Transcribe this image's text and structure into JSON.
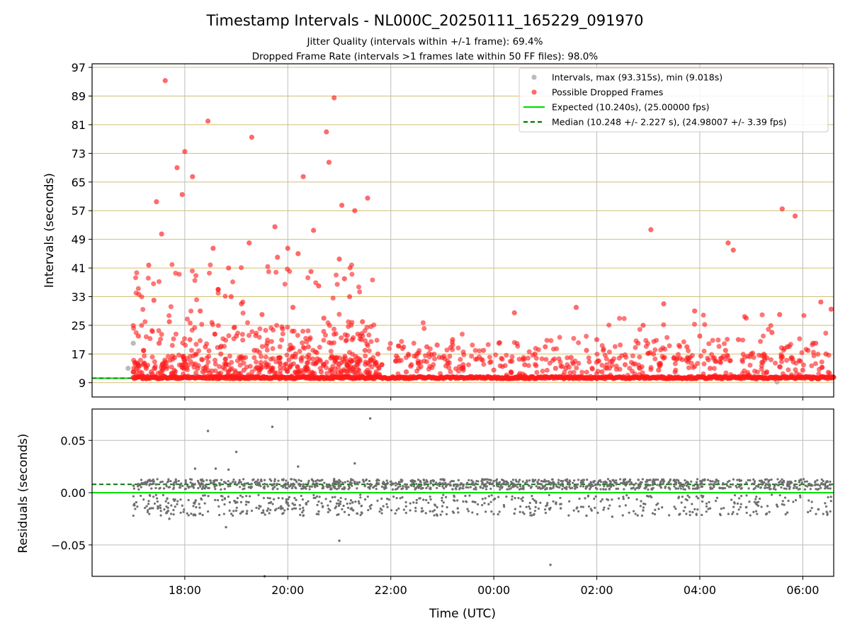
{
  "chart_data": [
    {
      "type": "scatter",
      "title": "Timestamp Intervals - NL000C_20250111_165229_091970",
      "subtitle_lines": [
        "Jitter Quality (intervals within +/-1 frame): 69.4%",
        "Dropped Frame Rate (intervals >1 frames late within 50 FF files): 98.0%"
      ],
      "xlabel": "",
      "ylabel": "Intervals (seconds)",
      "xlim_hours": [
        16.2,
        30.6
      ],
      "ylim": [
        5,
        98
      ],
      "yticks": [
        9,
        17,
        25,
        33,
        41,
        49,
        57,
        65,
        73,
        81,
        89,
        97
      ],
      "x_tick_hours": [
        18,
        20,
        22,
        24,
        26,
        28,
        30
      ],
      "grid": true,
      "legend_position": "top-right",
      "colors": {
        "intervals": "#9e9e9e",
        "dropped": "#ff1a1a",
        "expected": "#00e000",
        "median": "#007a00",
        "ygrid": "#d4be72",
        "xgrid": "#bdbdbd"
      },
      "series": [
        {
          "name": "Intervals, max (93.315s), min (9.018s)",
          "kind": "scatter",
          "x_hours": [
            16.9,
            17.0,
            17.1,
            17.2,
            17.3,
            17.5,
            17.8,
            18.2,
            18.6,
            19.5,
            20.3,
            21.3,
            21.6,
            29.1,
            29.5,
            30.3
          ],
          "y": [
            13.0,
            20.0,
            14.0,
            10.5,
            11.0,
            10.3,
            10.8,
            10.9,
            10.6,
            10.5,
            10.7,
            10.5,
            10.8,
            9.9,
            9.2,
            10.0
          ]
        },
        {
          "name": "Possible Dropped Frames",
          "kind": "scatter",
          "x_hours": [
            17.62,
            18.0,
            18.45,
            19.3,
            20.3,
            20.8,
            20.9,
            20.5,
            21.3,
            20.75,
            21.05,
            18.15,
            17.85,
            17.45,
            21.55,
            17.55,
            17.95,
            18.85,
            29.6,
            29.85,
            28.55,
            28.65,
            27.05,
            27.3,
            17.3,
            18.55,
            19.8,
            20.0,
            21.0,
            21.1,
            19.25,
            19.75,
            20.2,
            20.45,
            20.6,
            17.1,
            17.4,
            17.7,
            18.3,
            18.65,
            18.9,
            19.1,
            19.5,
            19.9,
            20.1,
            20.7,
            21.2,
            21.45,
            17.2,
            17.5,
            17.8,
            18.1,
            18.4,
            18.7,
            19.0,
            19.35,
            19.6,
            20.15,
            20.4,
            20.95,
            21.25,
            21.5,
            21.75,
            22.1,
            22.4,
            22.7,
            23.0,
            23.4,
            23.8,
            24.1,
            24.35,
            24.6,
            24.8,
            25.0,
            25.2,
            25.5,
            25.8,
            26.0,
            26.3,
            26.55,
            26.8,
            27.1,
            27.5,
            27.75,
            28.0,
            28.3,
            28.5,
            28.75,
            29.0,
            29.25,
            29.4,
            29.7,
            29.95,
            30.1,
            30.25,
            30.45,
            30.55,
            24.4,
            23.2,
            22.9,
            25.6,
            26.9,
            27.9,
            28.9,
            29.55,
            30.35,
            17.65,
            19.15,
            20.55,
            21.4,
            17.35,
            18.25,
            18.8,
            19.45,
            20.05,
            20.65,
            21.15,
            21.55,
            22.3,
            24.0,
            25.4,
            26.1,
            27.2,
            28.2,
            29.3,
            30.0,
            17.0,
            17.25,
            17.75,
            18.35,
            19.05,
            19.65,
            20.25,
            20.85,
            21.35
          ],
          "y": [
            93.3,
            73.5,
            82.0,
            77.5,
            66.5,
            70.5,
            88.5,
            51.5,
            57.0,
            79.0,
            58.5,
            66.5,
            69.0,
            59.5,
            60.5,
            50.5,
            61.5,
            41.0,
            57.5,
            55.5,
            48.0,
            46.0,
            51.7,
            31.0,
            41.8,
            46.5,
            44.0,
            46.5,
            43.5,
            38.0,
            48.0,
            52.5,
            45.0,
            40.0,
            36.0,
            22.0,
            32.0,
            26.0,
            29.0,
            35.0,
            33.0,
            31.0,
            28.0,
            24.0,
            30.0,
            27.0,
            33.0,
            26.0,
            18.0,
            20.0,
            16.0,
            21.0,
            19.0,
            17.0,
            22.0,
            18.0,
            20.0,
            17.0,
            19.0,
            16.0,
            21.0,
            18.0,
            17.0,
            15.0,
            14.0,
            19.0,
            16.0,
            13.0,
            18.0,
            20.0,
            15.0,
            14.0,
            17.0,
            19.0,
            13.0,
            16.0,
            18.0,
            21.0,
            15.0,
            14.0,
            20.0,
            17.0,
            16.0,
            19.0,
            22.0,
            15.0,
            18.0,
            21.0,
            17.0,
            16.0,
            23.0,
            19.0,
            15.0,
            18.0,
            20.0,
            17.0,
            29.5,
            28.5,
            21.0,
            19.5,
            30.0,
            25.0,
            29.0,
            27.0,
            28.0,
            31.5,
            13.5,
            12.5,
            14.5,
            15.5,
            12.0,
            13.0,
            14.0,
            12.5,
            13.5,
            12.0,
            14.0,
            12.5,
            12.0,
            12.5,
            13.0,
            12.0,
            12.5,
            13.0,
            12.0,
            12.5,
            12.0,
            13.0,
            11.5,
            12.0,
            11.5,
            12.0,
            11.5,
            12.0,
            11.5
          ]
        },
        {
          "name": "Expected (10.240s), (25.00000 fps)",
          "kind": "line",
          "y": 10.24
        },
        {
          "name": "Median (10.248 +/- 2.227 s), (24.98007 +/- 3.39 fps)",
          "kind": "dashed",
          "y": 10.248
        }
      ],
      "baseline_dropped_band": {
        "x_start_hours": 17.0,
        "x_end_hours": 30.6,
        "y": 10.4
      }
    },
    {
      "type": "scatter",
      "xlabel": "Time (UTC)",
      "ylabel": "Residuals (seconds)",
      "xlim_hours": [
        16.2,
        30.6
      ],
      "ylim": [
        -0.08,
        0.08
      ],
      "yticks": [
        -0.05,
        0.0,
        0.05
      ],
      "ytick_labels": [
        "−0.05",
        "0.00",
        "0.05"
      ],
      "x_tick_labels": [
        "18:00",
        "20:00",
        "22:00",
        "00:00",
        "02:00",
        "04:00",
        "06:00"
      ],
      "x_tick_hours": [
        18,
        20,
        22,
        24,
        26,
        28,
        30
      ],
      "grid": true,
      "expected_line": 0.0,
      "median_line": 0.008,
      "series": [
        {
          "name": "",
          "kind": "scatter",
          "x_hours": [
            18.45,
            19.7,
            21.6,
            19.0,
            18.2,
            18.6,
            18.85,
            20.2,
            20.9,
            21.3,
            21.0,
            19.55,
            20.0,
            17.7,
            19.2,
            19.9,
            20.6,
            20.3,
            18.8,
            22.6,
            23.3,
            24.4,
            25.3,
            25.8,
            26.9,
            27.6,
            28.2,
            29.3,
            30.3,
            26.3,
            28.9,
            29.7,
            25.1,
            23.9
          ],
          "y": [
            0.059,
            0.063,
            0.071,
            0.039,
            0.023,
            0.023,
            0.022,
            0.025,
            0.013,
            0.028,
            -0.046,
            -0.08,
            -0.01,
            -0.025,
            -0.02,
            -0.015,
            -0.018,
            -0.022,
            -0.033,
            -0.018,
            -0.015,
            -0.02,
            -0.015,
            -0.022,
            -0.017,
            -0.021,
            -0.015,
            -0.02,
            -0.016,
            -0.023,
            -0.014,
            -0.019,
            -0.069,
            -0.011
          ]
        }
      ]
    }
  ]
}
